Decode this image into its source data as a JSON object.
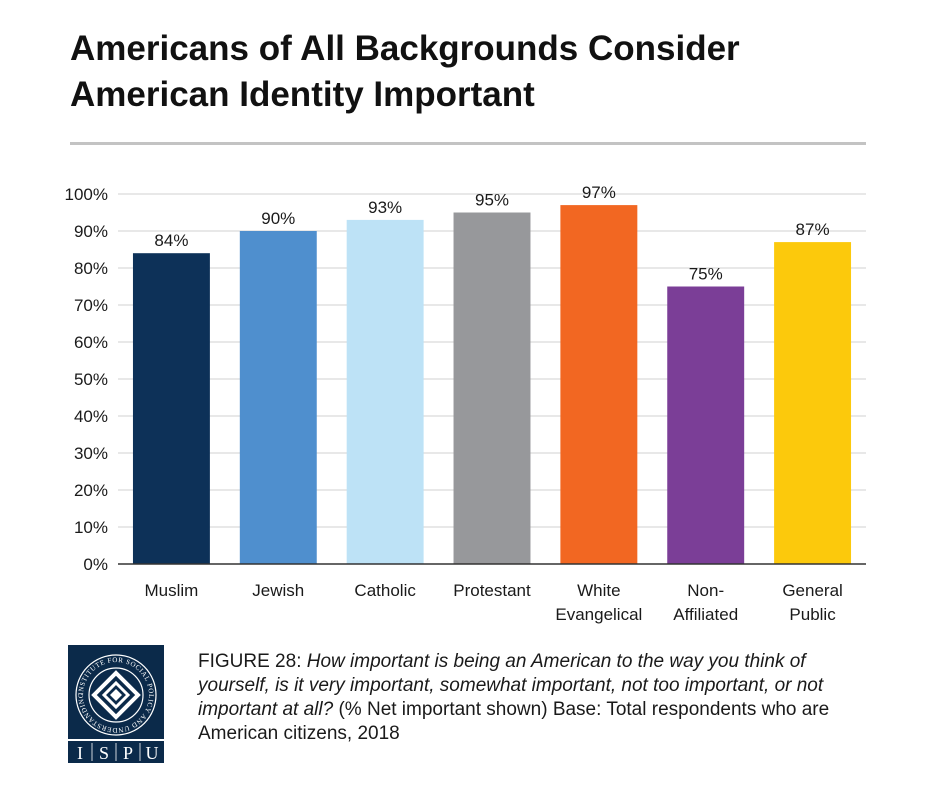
{
  "title": {
    "line1": "Americans of All Backgrounds Consider",
    "line2": "American Identity Important"
  },
  "colors": {
    "grid": "#d0d0d0",
    "axis": "#333333",
    "rule": "#c3c3c3",
    "logo": "#0b2a4a"
  },
  "chart_data": {
    "type": "bar",
    "title": "Americans of All Backgrounds Consider American Identity Important",
    "xlabel": "",
    "ylabel": "",
    "ylim": [
      0,
      100
    ],
    "grid": true,
    "yticks": [
      "0%",
      "10%",
      "20%",
      "30%",
      "40%",
      "50%",
      "60%",
      "70%",
      "80%",
      "90%",
      "100%"
    ],
    "categories": [
      [
        "Muslim"
      ],
      [
        "Jewish"
      ],
      [
        "Catholic"
      ],
      [
        "Protestant"
      ],
      [
        "White",
        "Evangelical"
      ],
      [
        "Non-",
        "Affiliated"
      ],
      [
        "General",
        "Public"
      ]
    ],
    "values": [
      84,
      90,
      93,
      95,
      97,
      75,
      87
    ],
    "value_labels": [
      "84%",
      "90%",
      "93%",
      "95%",
      "97%",
      "75%",
      "87%"
    ],
    "bar_colors": [
      "#0d3158",
      "#4f8fce",
      "#bde2f6",
      "#97989b",
      "#f26722",
      "#7b3e97",
      "#fcc90c"
    ]
  },
  "caption": {
    "figure": "FIGURE 28",
    "sep": ": ",
    "question": "How important is being an American to the way you think of yourself, is it very important, somewhat important, not too important, or not important at all?",
    "note": " (% Net important shown) Base: Total respondents who are American citizens, 2018"
  },
  "logo": {
    "ring_text": "INSTITUTE FOR SOCIAL POLICY AND UNDERSTANDING",
    "letters": [
      "I",
      "S",
      "P",
      "U"
    ]
  }
}
